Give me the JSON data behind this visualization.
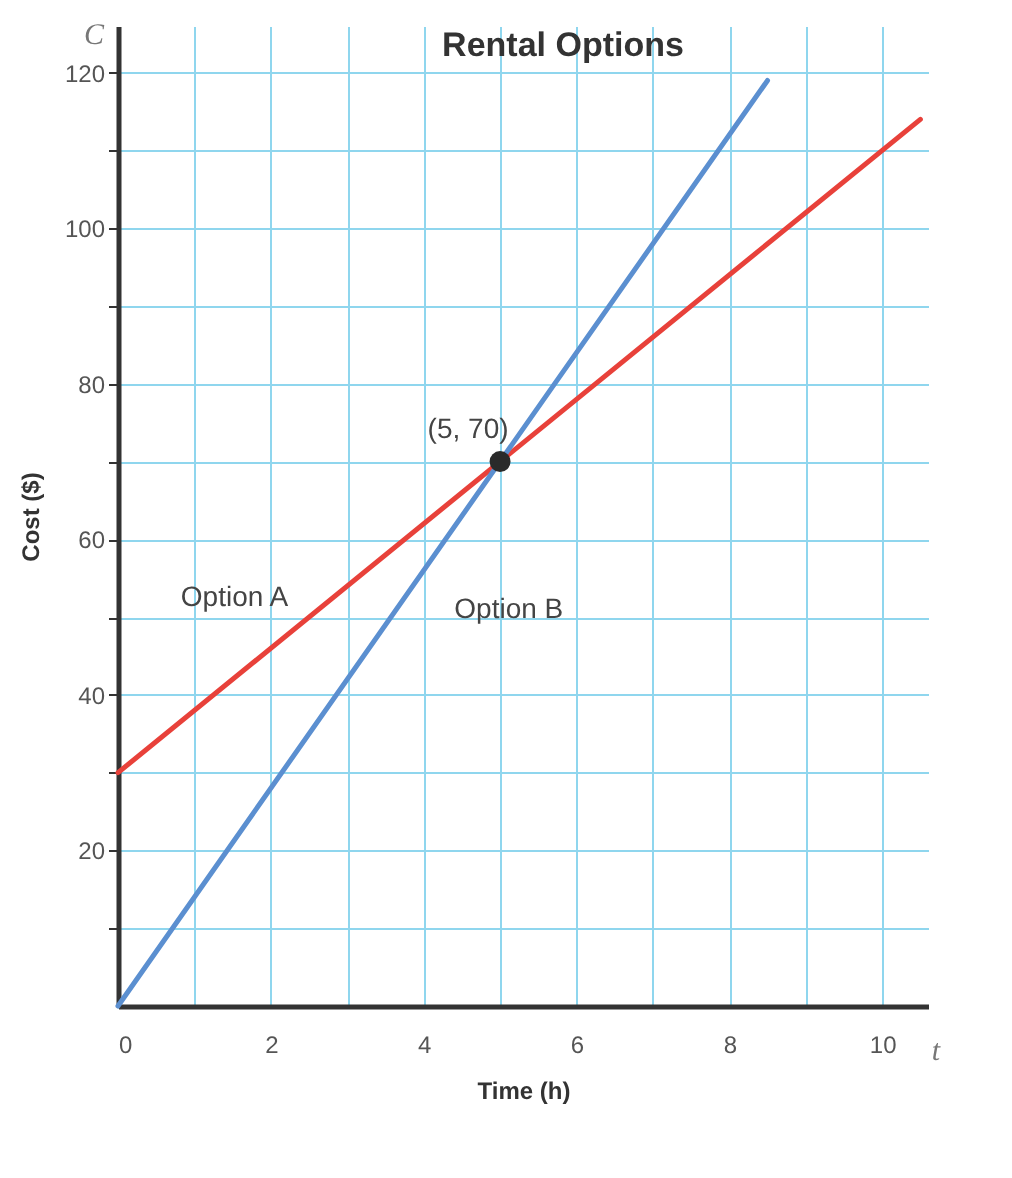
{
  "chart_data": {
    "type": "line",
    "title": "Rental Options",
    "xlabel": "Time (h)",
    "ylabel": "Cost ($)",
    "xlim": [
      0,
      10.6
    ],
    "ylim": [
      0,
      126
    ],
    "xticks": [
      0,
      {
        "value": 1,
        "label": null
      },
      2,
      {
        "value": 3,
        "label": null
      },
      4,
      {
        "value": 5,
        "label": null
      },
      6,
      {
        "value": 7,
        "label": null
      },
      8,
      {
        "value": 9,
        "label": null
      },
      10
    ],
    "yticks": [
      {
        "value": 10,
        "label": null
      },
      20,
      {
        "value": 30,
        "label": null
      },
      40,
      {
        "value": 50,
        "label": null
      },
      60,
      {
        "value": 70,
        "label": null
      },
      80,
      {
        "value": 90,
        "label": null
      },
      100,
      {
        "value": 110,
        "label": null
      },
      120
    ],
    "grid": true,
    "marker": "none",
    "line_style": "solid",
    "series": [
      {
        "name": "Option A",
        "color": "#e8413a",
        "x": [
          0,
          10.5
        ],
        "values": [
          30,
          114
        ]
      },
      {
        "name": "Option B",
        "color": "#5b8fd0",
        "x": [
          0,
          8.5
        ],
        "values": [
          0,
          119
        ]
      },
      {
        "type": "scatter",
        "marker": "circle",
        "color": "#2a2a2a",
        "x": [
          5
        ],
        "values": [
          70
        ]
      }
    ],
    "annotations": [
      {
        "text": "(5, 70)",
        "x": 5,
        "y": 70
      },
      "C",
      "t"
    ]
  }
}
